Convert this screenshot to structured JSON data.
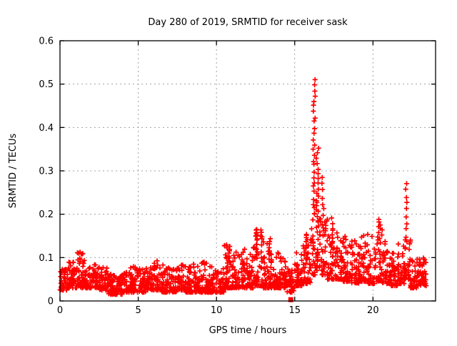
{
  "page": {
    "background_color": "#ffffff",
    "text_color": "#000000"
  },
  "chart_data": {
    "type": "scatter",
    "title": "Day 280 of 2019, SRMTID for receiver sask",
    "xlabel": "GPS time / hours",
    "ylabel": "SRMTID / TECUs",
    "xlim": [
      0,
      24
    ],
    "ylim": [
      0,
      0.6
    ],
    "xticks": {
      "values": [
        0,
        5,
        10,
        15,
        20
      ],
      "labels": [
        "0",
        "5",
        "10",
        "15",
        "20"
      ]
    },
    "yticks": {
      "values": [
        0,
        0.1,
        0.2,
        0.3,
        0.4,
        0.5,
        0.6
      ],
      "labels": [
        "0",
        "0.1",
        "0.2",
        "0.3",
        "0.4",
        "0.5",
        "0.6"
      ]
    },
    "grid": {
      "enabled": true,
      "style": "dashed",
      "color": "#a0a0a0"
    },
    "legend": {
      "visible": false
    },
    "marker": {
      "shape": "plus",
      "color": "#ff0000",
      "size": 7,
      "stroke_width": 1.7
    },
    "notable_points": [
      {
        "x": 16.25,
        "y": 0.51,
        "note": "main spike maximum"
      },
      {
        "x": 22.1,
        "y": 0.27,
        "note": "secondary spike maximum"
      }
    ],
    "outlier_square": {
      "x": 14.75,
      "y": 0.003,
      "marker": "filled-square",
      "color": "#ff0000",
      "size": 7
    },
    "band_profile_columns": [
      "t_start_hour",
      "t_end_hour",
      "n_points",
      "y_min_TECU",
      "y_max_TECU",
      "low_bias_exponent"
    ],
    "band_profile": [
      [
        0.0,
        0.5,
        42,
        0.025,
        0.075,
        1.8
      ],
      [
        0.5,
        1.0,
        42,
        0.03,
        0.09,
        2.0
      ],
      [
        1.0,
        1.5,
        42,
        0.03,
        0.115,
        2.2
      ],
      [
        1.5,
        2.0,
        42,
        0.03,
        0.095,
        2.2
      ],
      [
        2.0,
        2.5,
        42,
        0.03,
        0.09,
        2.0
      ],
      [
        2.5,
        3.0,
        42,
        0.025,
        0.08,
        2.0
      ],
      [
        3.0,
        3.5,
        42,
        0.015,
        0.065,
        1.8
      ],
      [
        3.5,
        4.0,
        42,
        0.015,
        0.06,
        1.8
      ],
      [
        4.0,
        4.5,
        42,
        0.02,
        0.07,
        2.0
      ],
      [
        4.5,
        5.0,
        42,
        0.02,
        0.08,
        2.2
      ],
      [
        5.0,
        5.5,
        42,
        0.02,
        0.075,
        2.0
      ],
      [
        5.5,
        6.0,
        42,
        0.025,
        0.085,
        2.2
      ],
      [
        6.0,
        6.5,
        42,
        0.025,
        0.095,
        2.2
      ],
      [
        6.5,
        7.0,
        42,
        0.02,
        0.085,
        2.0
      ],
      [
        7.0,
        7.5,
        42,
        0.02,
        0.08,
        2.0
      ],
      [
        7.5,
        8.0,
        42,
        0.025,
        0.085,
        2.2
      ],
      [
        8.0,
        8.5,
        42,
        0.02,
        0.08,
        2.0
      ],
      [
        8.5,
        9.0,
        42,
        0.02,
        0.085,
        2.2
      ],
      [
        9.0,
        9.5,
        42,
        0.02,
        0.09,
        2.2
      ],
      [
        9.5,
        10.0,
        42,
        0.02,
        0.08,
        2.0
      ],
      [
        10.0,
        10.5,
        42,
        0.02,
        0.075,
        2.0
      ],
      [
        10.5,
        11.0,
        42,
        0.03,
        0.13,
        2.4
      ],
      [
        11.0,
        11.5,
        42,
        0.03,
        0.115,
        2.2
      ],
      [
        11.5,
        12.0,
        42,
        0.03,
        0.12,
        2.4
      ],
      [
        12.0,
        12.5,
        42,
        0.03,
        0.135,
        2.4
      ],
      [
        12.5,
        13.0,
        42,
        0.035,
        0.165,
        2.6
      ],
      [
        13.0,
        13.5,
        42,
        0.03,
        0.145,
        2.4
      ],
      [
        13.5,
        14.0,
        42,
        0.03,
        0.12,
        2.4
      ],
      [
        14.0,
        14.5,
        42,
        0.03,
        0.1,
        2.2
      ],
      [
        14.5,
        15.0,
        42,
        0.02,
        0.085,
        2.0
      ],
      [
        15.0,
        15.5,
        42,
        0.035,
        0.115,
        2.2
      ],
      [
        15.5,
        16.0,
        42,
        0.04,
        0.155,
        2.4
      ],
      [
        16.0,
        16.3,
        26,
        0.06,
        0.22,
        2.0
      ],
      [
        16.3,
        16.7,
        28,
        0.07,
        0.24,
        2.0
      ],
      [
        16.7,
        17.1,
        32,
        0.06,
        0.2,
        2.0
      ],
      [
        17.1,
        17.6,
        40,
        0.05,
        0.185,
        2.2
      ],
      [
        17.6,
        18.1,
        40,
        0.05,
        0.16,
        2.2
      ],
      [
        18.1,
        18.6,
        40,
        0.045,
        0.15,
        2.2
      ],
      [
        18.6,
        19.1,
        40,
        0.04,
        0.145,
        2.2
      ],
      [
        19.1,
        19.6,
        40,
        0.045,
        0.16,
        2.4
      ],
      [
        19.6,
        20.1,
        40,
        0.04,
        0.155,
        2.2
      ],
      [
        20.1,
        20.6,
        40,
        0.045,
        0.185,
        2.4
      ],
      [
        20.6,
        21.1,
        40,
        0.04,
        0.15,
        2.2
      ],
      [
        21.1,
        21.6,
        40,
        0.035,
        0.13,
        2.2
      ],
      [
        21.6,
        22.0,
        34,
        0.04,
        0.14,
        2.2
      ],
      [
        22.0,
        22.4,
        34,
        0.05,
        0.15,
        2.0
      ],
      [
        22.4,
        22.9,
        40,
        0.03,
        0.115,
        2.2
      ],
      [
        22.9,
        23.4,
        44,
        0.035,
        0.1,
        1.8
      ]
    ],
    "burst_columns_columns": [
      "t_center_hour",
      "half_width_hour",
      "n_points",
      "y_min_TECU",
      "y_max_TECU"
    ],
    "burst_columns": [
      [
        10.8,
        0.05,
        6,
        0.09,
        0.128
      ],
      [
        12.55,
        0.06,
        12,
        0.1,
        0.168
      ],
      [
        13.4,
        0.05,
        8,
        0.1,
        0.142
      ],
      [
        15.75,
        0.05,
        6,
        0.1,
        0.155
      ],
      [
        16.25,
        0.08,
        26,
        0.2,
        0.512
      ],
      [
        16.45,
        0.08,
        18,
        0.16,
        0.35
      ],
      [
        16.8,
        0.06,
        10,
        0.15,
        0.285
      ],
      [
        17.4,
        0.05,
        6,
        0.12,
        0.19
      ],
      [
        20.35,
        0.05,
        5,
        0.12,
        0.19
      ],
      [
        22.12,
        0.05,
        11,
        0.12,
        0.272
      ]
    ],
    "seed": 7
  }
}
